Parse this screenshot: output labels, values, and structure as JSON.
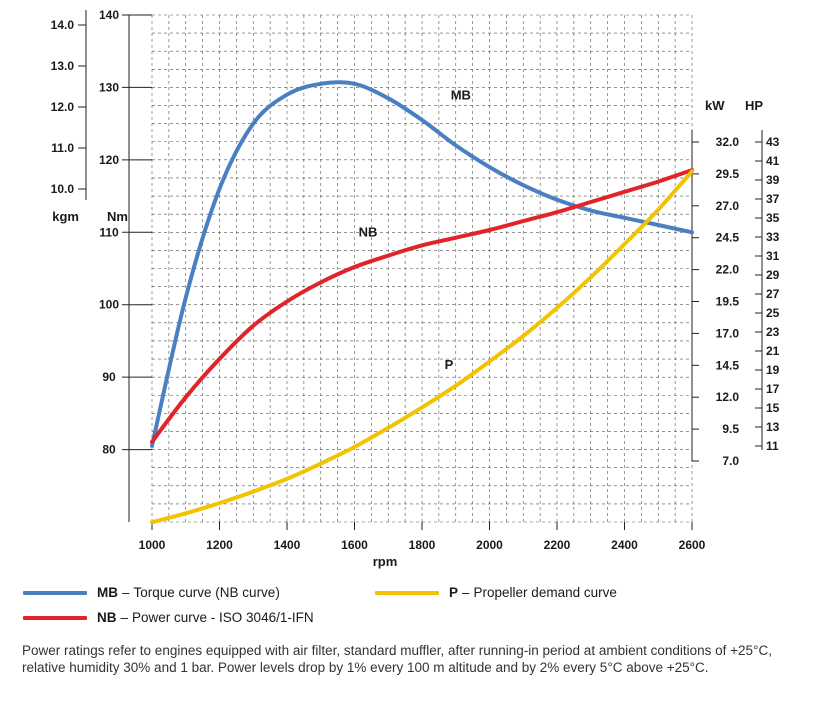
{
  "chart_data": {
    "type": "line",
    "x_axis": {
      "label": "rpm",
      "range": [
        1000,
        2600
      ],
      "ticks": [
        1000,
        1200,
        1400,
        1600,
        1800,
        2000,
        2200,
        2400,
        2600
      ]
    },
    "torque_axis_nm": {
      "label": "Nm",
      "range": [
        70,
        140
      ],
      "ticks": [
        80,
        90,
        100,
        110,
        120,
        130,
        140
      ]
    },
    "torque_axis_kgm": {
      "label": "kgm",
      "ticks": [
        "10.0",
        "11.0",
        "12.0",
        "13.0",
        "14.0"
      ],
      "tick_values": [
        10.0,
        11.0,
        12.0,
        13.0,
        14.0
      ]
    },
    "power_axis_kw": {
      "label": "kW",
      "ticks": [
        "7.0",
        "9.5",
        "12.0",
        "14.5",
        "17.0",
        "19.5",
        "22.0",
        "24.5",
        "27.0",
        "29.5",
        "32.0"
      ],
      "tick_values": [
        7.0,
        9.5,
        12.0,
        14.5,
        17.0,
        19.5,
        22.0,
        24.5,
        27.0,
        29.5,
        32.0
      ]
    },
    "power_axis_hp": {
      "label": "HP",
      "ticks": [
        "11",
        "13",
        "15",
        "17",
        "19",
        "21",
        "23",
        "25",
        "27",
        "29",
        "31",
        "33",
        "35",
        "37",
        "39",
        "41",
        "43"
      ],
      "tick_values": [
        11,
        13,
        15,
        17,
        19,
        21,
        23,
        25,
        27,
        29,
        31,
        33,
        35,
        37,
        39,
        41,
        43
      ]
    },
    "series": [
      {
        "code": "MB",
        "name": "Torque curve (NB curve)",
        "color": "#4a7fc1",
        "axis": "torque_nm",
        "x": [
          1000,
          1100,
          1200,
          1300,
          1400,
          1500,
          1600,
          1700,
          1800,
          1900,
          2000,
          2100,
          2200,
          2300,
          2400,
          2500,
          2600
        ],
        "values": [
          80.5,
          101,
          116,
          125,
          129,
          130.5,
          130.5,
          128.5,
          125.5,
          122,
          119,
          116.5,
          114.5,
          113,
          112,
          111,
          110
        ]
      },
      {
        "code": "NB",
        "name": "Power curve - ISO 3046/1-IFN",
        "color": "#e0242a",
        "axis": "power_kw",
        "x": [
          1000,
          1100,
          1200,
          1300,
          1400,
          1500,
          1600,
          1700,
          1800,
          1900,
          2000,
          2100,
          2200,
          2300,
          2400,
          2500,
          2600
        ],
        "values": [
          8.5,
          12,
          15,
          17.6,
          19.5,
          21,
          22.2,
          23.1,
          23.9,
          24.5,
          25.1,
          25.8,
          26.5,
          27.3,
          28.1,
          28.9,
          29.8
        ]
      },
      {
        "code": "P",
        "name": "Propeller demand curve",
        "color": "#f2c300",
        "axis": "power_kw",
        "x": [
          1000,
          1100,
          1200,
          1300,
          1400,
          1500,
          1600,
          1700,
          1800,
          1900,
          2000,
          2100,
          2200,
          2300,
          2400,
          2500,
          2600
        ],
        "values": [
          2.2,
          2.9,
          3.7,
          4.6,
          5.6,
          6.8,
          8.1,
          9.6,
          11.2,
          12.9,
          14.8,
          16.8,
          19,
          21.4,
          24,
          26.7,
          29.7
        ]
      }
    ]
  },
  "legend": [
    {
      "code": "MB",
      "separator": "–",
      "desc": "Torque curve (NB curve)",
      "color": "#4a7fc1"
    },
    {
      "code": "P",
      "separator": "–",
      "desc": "Propeller demand curve",
      "color": "#f2c300"
    },
    {
      "code": "NB",
      "separator": "–",
      "desc": "Power curve - ISO 3046/1-IFN",
      "color": "#e0242a"
    }
  ],
  "footnote": "Power ratings refer to engines equipped with air filter, standard muffler, after running-in period at ambient conditions of +25°C, relative humidity 30% and 1 bar. Power levels drop by 1% every 100 m altitude and by 2% every 5°C above +25°C."
}
